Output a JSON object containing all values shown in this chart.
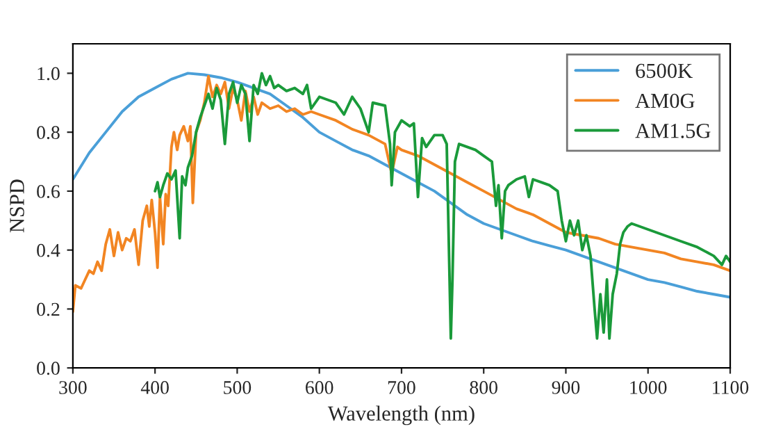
{
  "chart_data": {
    "type": "line",
    "xlabel": "Wavelength (nm)",
    "ylabel": "NSPD",
    "xlim": [
      300,
      1100
    ],
    "xticks": [
      300,
      400,
      500,
      600,
      700,
      800,
      900,
      1000,
      1100
    ],
    "ylim": [
      0,
      1.1
    ],
    "yticks": [
      {
        "value": 0,
        "label": "0.0"
      },
      {
        "value": 0.2,
        "label": "0.2"
      },
      {
        "value": 0.4,
        "label": "0.4"
      },
      {
        "value": 0.6,
        "label": "0.6"
      },
      {
        "value": 0.8,
        "label": "0.8"
      },
      {
        "value": 1.0,
        "label": "1.0"
      }
    ],
    "grid": false,
    "legend": "top right",
    "series": [
      {
        "name": "6500K",
        "color": "#4a9fd8",
        "x": [
          300,
          320,
          340,
          360,
          380,
          400,
          420,
          440,
          460,
          480,
          500,
          520,
          540,
          560,
          580,
          600,
          620,
          640,
          660,
          680,
          700,
          720,
          740,
          760,
          780,
          800,
          820,
          840,
          860,
          880,
          900,
          920,
          940,
          960,
          980,
          1000,
          1020,
          1040,
          1060,
          1080,
          1100
        ],
        "values": [
          0.64,
          0.73,
          0.8,
          0.87,
          0.92,
          0.95,
          0.98,
          1.0,
          0.995,
          0.985,
          0.97,
          0.95,
          0.93,
          0.89,
          0.85,
          0.8,
          0.77,
          0.74,
          0.72,
          0.69,
          0.66,
          0.63,
          0.6,
          0.56,
          0.52,
          0.49,
          0.47,
          0.45,
          0.43,
          0.415,
          0.4,
          0.38,
          0.36,
          0.34,
          0.32,
          0.3,
          0.29,
          0.275,
          0.26,
          0.25,
          0.24
        ]
      },
      {
        "name": "AM0G",
        "color": "#f28522",
        "x": [
          300,
          303,
          310,
          315,
          320,
          325,
          330,
          335,
          340,
          345,
          350,
          355,
          360,
          365,
          370,
          375,
          380,
          385,
          390,
          393,
          396,
          400,
          403,
          406,
          410,
          413,
          416,
          420,
          423,
          427,
          430,
          435,
          440,
          443,
          446,
          450,
          455,
          460,
          465,
          470,
          475,
          480,
          485,
          490,
          495,
          500,
          505,
          510,
          515,
          520,
          525,
          530,
          540,
          550,
          560,
          570,
          580,
          590,
          600,
          620,
          640,
          660,
          680,
          688,
          695,
          700,
          720,
          740,
          760,
          780,
          800,
          820,
          840,
          860,
          880,
          900,
          920,
          940,
          960,
          980,
          1000,
          1020,
          1040,
          1060,
          1080,
          1100
        ],
        "values": [
          0.19,
          0.28,
          0.27,
          0.3,
          0.33,
          0.32,
          0.36,
          0.33,
          0.42,
          0.47,
          0.38,
          0.46,
          0.4,
          0.44,
          0.43,
          0.47,
          0.35,
          0.5,
          0.55,
          0.48,
          0.57,
          0.46,
          0.34,
          0.58,
          0.42,
          0.59,
          0.55,
          0.75,
          0.8,
          0.74,
          0.79,
          0.82,
          0.77,
          0.82,
          0.56,
          0.8,
          0.84,
          0.9,
          0.99,
          0.92,
          0.96,
          0.93,
          0.97,
          0.88,
          0.95,
          0.91,
          0.84,
          0.94,
          0.87,
          0.92,
          0.86,
          0.9,
          0.88,
          0.89,
          0.87,
          0.88,
          0.86,
          0.87,
          0.86,
          0.84,
          0.81,
          0.79,
          0.76,
          0.66,
          0.75,
          0.74,
          0.72,
          0.69,
          0.66,
          0.63,
          0.6,
          0.57,
          0.54,
          0.52,
          0.49,
          0.46,
          0.45,
          0.44,
          0.42,
          0.41,
          0.4,
          0.39,
          0.37,
          0.36,
          0.35,
          0.33
        ]
      },
      {
        "name": "AM1.5G",
        "color": "#1a9a3a",
        "x": [
          400,
          403,
          406,
          410,
          415,
          420,
          425,
          430,
          433,
          437,
          440,
          445,
          450,
          455,
          460,
          465,
          470,
          475,
          480,
          485,
          490,
          495,
          500,
          505,
          510,
          515,
          520,
          525,
          530,
          535,
          540,
          545,
          550,
          560,
          570,
          580,
          585,
          590,
          600,
          610,
          620,
          630,
          640,
          650,
          660,
          665,
          680,
          686,
          688,
          692,
          700,
          710,
          715,
          720,
          725,
          730,
          740,
          750,
          755,
          760,
          762,
          765,
          770,
          780,
          790,
          800,
          810,
          815,
          818,
          822,
          826,
          830,
          840,
          850,
          855,
          860,
          870,
          880,
          890,
          895,
          900,
          905,
          910,
          915,
          920,
          925,
          930,
          935,
          938,
          942,
          946,
          950,
          953,
          957,
          962,
          966,
          970,
          975,
          980,
          990,
          1000,
          1020,
          1040,
          1060,
          1080,
          1090,
          1095,
          1100
        ],
        "values": [
          0.6,
          0.63,
          0.58,
          0.62,
          0.66,
          0.64,
          0.67,
          0.44,
          0.65,
          0.62,
          0.68,
          0.72,
          0.8,
          0.85,
          0.89,
          0.93,
          0.88,
          0.95,
          0.91,
          0.76,
          0.93,
          0.97,
          0.9,
          0.96,
          0.93,
          0.77,
          0.96,
          0.93,
          1.0,
          0.96,
          0.99,
          0.95,
          0.96,
          0.94,
          0.95,
          0.93,
          0.96,
          0.88,
          0.92,
          0.91,
          0.9,
          0.86,
          0.92,
          0.88,
          0.8,
          0.9,
          0.89,
          0.76,
          0.62,
          0.8,
          0.84,
          0.82,
          0.83,
          0.58,
          0.78,
          0.75,
          0.79,
          0.79,
          0.76,
          0.1,
          0.3,
          0.7,
          0.76,
          0.75,
          0.74,
          0.72,
          0.7,
          0.55,
          0.62,
          0.44,
          0.6,
          0.62,
          0.64,
          0.65,
          0.58,
          0.64,
          0.63,
          0.62,
          0.6,
          0.5,
          0.43,
          0.5,
          0.45,
          0.5,
          0.4,
          0.45,
          0.38,
          0.2,
          0.1,
          0.25,
          0.12,
          0.3,
          0.1,
          0.25,
          0.32,
          0.42,
          0.46,
          0.48,
          0.49,
          0.48,
          0.47,
          0.45,
          0.43,
          0.41,
          0.38,
          0.35,
          0.38,
          0.36
        ]
      }
    ]
  }
}
